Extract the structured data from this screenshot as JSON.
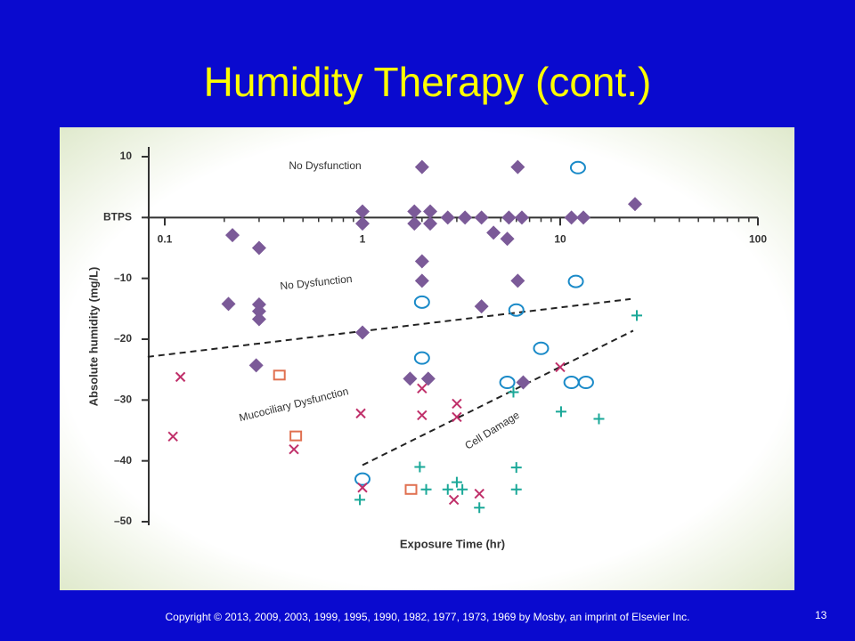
{
  "slide": {
    "title": "Humidity Therapy (cont.)",
    "copyright": "Copyright © 2013, 2009, 2003, 1999, 1995, 1990, 1982, 1977, 1973, 1969 by Mosby, an imprint of Elsevier Inc.",
    "page_number": "13"
  },
  "chart_data": {
    "type": "scatter",
    "xlabel": "Exposure Time (hr)",
    "ylabel": "Absolute humidity (mg/L)",
    "xscale": "log",
    "xlim": [
      0.1,
      100
    ],
    "xticks": [
      0.1,
      1,
      10,
      100
    ],
    "xminorticks": [
      0.2,
      0.3,
      0.4,
      0.5,
      0.6,
      0.7,
      0.8,
      0.9,
      2,
      3,
      4,
      5,
      6,
      7,
      8,
      9,
      20,
      30,
      40,
      50,
      60,
      70,
      80,
      90
    ],
    "ylim": [
      -50,
      10
    ],
    "yticks": [
      10,
      {
        "value": 0,
        "label": "BTPS"
      },
      {
        "value": -10,
        "label": "–10"
      },
      {
        "value": -20,
        "label": "–20"
      },
      {
        "value": -30,
        "label": "–30"
      },
      {
        "value": -40,
        "label": "–40"
      },
      {
        "value": -50,
        "label": "–50"
      }
    ],
    "series": [
      {
        "marker": "diamond",
        "color": "#7b5a98",
        "x": [
          2.0,
          6.1,
          23.9,
          0.22,
          0.3,
          1.0,
          1.0,
          1.83,
          2.2,
          1.83,
          2.2,
          2.7,
          3.3,
          4.0,
          5.5,
          6.4,
          11.4,
          13.1,
          4.6,
          5.4,
          2.0,
          2.0,
          6.1,
          0.21,
          0.3,
          0.3,
          0.3,
          1.0,
          4.0,
          0.29,
          1.74,
          2.15,
          6.5
        ],
        "y": [
          8.3,
          8.3,
          2.2,
          -2.9,
          -5.0,
          1.0,
          -1.0,
          1.0,
          1.0,
          -1.0,
          -1.0,
          0,
          0,
          0,
          0,
          0,
          0,
          0,
          -2.5,
          -3.5,
          -7.2,
          -10.4,
          -10.4,
          -14.2,
          -14.3,
          -15.4,
          -16.7,
          -18.9,
          -14.6,
          -24.3,
          -26.5,
          -26.5,
          -27.1
        ]
      },
      {
        "marker": "circle",
        "color": "#1a8ac8",
        "x": [
          12.3,
          2.0,
          6.0,
          8.0,
          12.0,
          2.0,
          5.4,
          11.4,
          13.5,
          1.0
        ],
        "y": [
          8.2,
          -13.9,
          -15.2,
          -21.5,
          -10.5,
          -23.1,
          -27.1,
          -27.1,
          -27.1,
          -43.0
        ]
      },
      {
        "marker": "cross",
        "color": "#c0306a",
        "x": [
          0.12,
          0.11,
          0.45,
          0.98,
          2.0,
          2.0,
          3.0,
          3.0,
          10,
          1.0,
          2.9,
          3.9
        ],
        "y": [
          -26.2,
          -36.0,
          -38.1,
          -32.2,
          -28.1,
          -32.5,
          -30.6,
          -32.8,
          -24.6,
          -44.4,
          -46.4,
          -45.4
        ]
      },
      {
        "marker": "plus",
        "color": "#1aa898",
        "x": [
          24.4,
          5.8,
          10.1,
          15.7,
          1.95,
          6.0,
          0.97,
          2.1,
          2.7,
          3.0,
          3.2,
          6.0,
          3.9
        ],
        "y": [
          -16.1,
          -28.7,
          -31.9,
          -33.1,
          -41.0,
          -41.1,
          -46.4,
          -44.7,
          -44.7,
          -43.5,
          -44.7,
          -44.7,
          -47.7
        ]
      },
      {
        "marker": "square",
        "color": "#e07050",
        "x": [
          0.38,
          0.46,
          1.76
        ],
        "y": [
          -25.9,
          -35.9,
          -44.7
        ]
      }
    ],
    "boundaries": [
      {
        "x": [
          0.082,
          22.7
        ],
        "y": [
          -22.9,
          -13.4
        ]
      },
      {
        "x": [
          1.0,
          23.4
        ],
        "y": [
          -40.7,
          -18.6
        ]
      }
    ],
    "annotations": [
      "No Dysfunction",
      "No Dysfunction",
      "Mucociliary Dysfunction",
      "Cell Damage"
    ]
  }
}
